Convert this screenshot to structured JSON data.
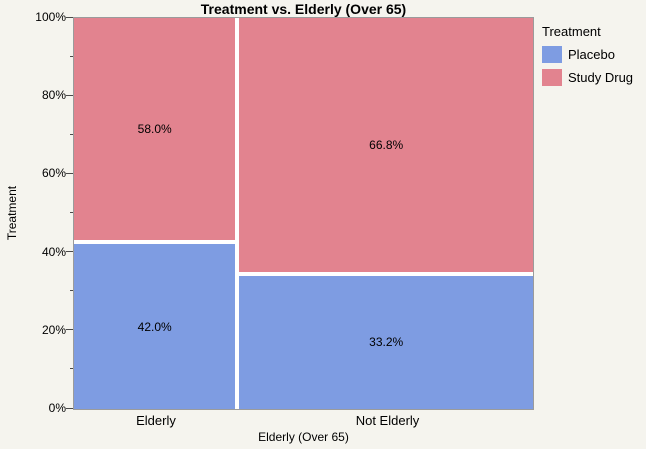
{
  "chart_data": {
    "type": "mosaic",
    "title": "Treatment vs. Elderly (Over 65)",
    "xlabel": "Elderly (Over 65)",
    "ylabel": "Treatment",
    "categories": [
      "Elderly",
      "Not Elderly"
    ],
    "column_shares": [
      0.356,
      0.644
    ],
    "series": [
      {
        "name": "Placebo",
        "color": "#7E9CE2",
        "values": [
          42.0,
          33.2
        ],
        "labels": [
          "42.0%",
          "33.2%"
        ]
      },
      {
        "name": "Study Drug",
        "color": "#E2838F",
        "values": [
          58.0,
          66.8
        ],
        "labels": [
          "58.0%",
          "66.8%"
        ]
      }
    ],
    "y_axis": {
      "major_ticks": [
        0,
        20,
        40,
        60,
        80,
        100
      ],
      "major_tick_labels": [
        "0%",
        "20%",
        "40%",
        "60%",
        "80%",
        "100%"
      ],
      "minor_ticks": [
        10,
        30,
        50,
        70,
        90
      ],
      "range": [
        0,
        100
      ]
    },
    "legend": {
      "title": "Treatment",
      "position": "right"
    },
    "colors": {
      "background": "#F5F4EE",
      "plot_background": "#FFFFFF",
      "frame": "#9B9B9B"
    }
  }
}
